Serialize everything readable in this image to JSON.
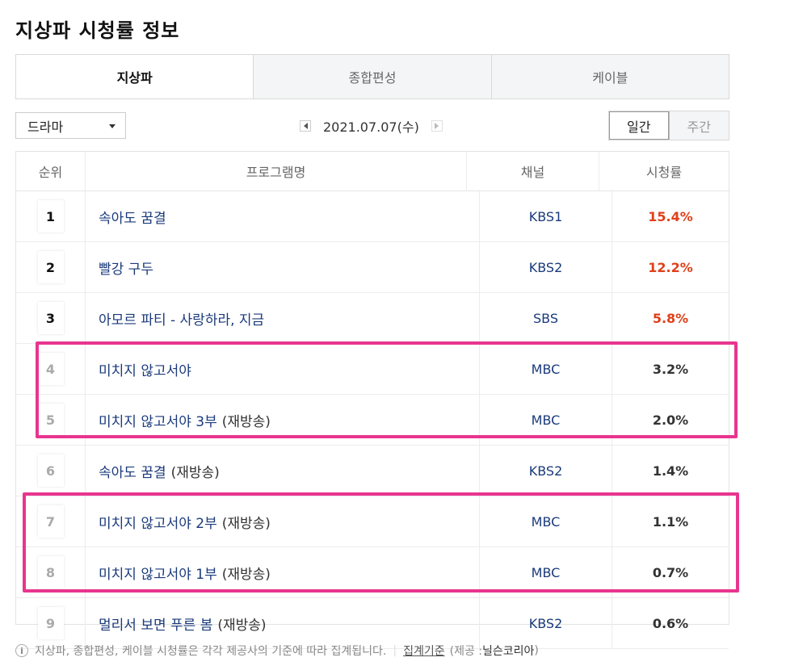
{
  "page_title": "지상파 시청률 정보",
  "tabs": [
    {
      "label": "지상파",
      "active": true
    },
    {
      "label": "종합편성",
      "active": false
    },
    {
      "label": "케이블",
      "active": false
    }
  ],
  "genre_select": {
    "value": "드라마"
  },
  "date_nav": {
    "date": "2021.07.07(수)"
  },
  "period": {
    "daily": "일간",
    "weekly": "주간",
    "selected": "일간"
  },
  "table": {
    "headers": {
      "rank": "순위",
      "program": "프로그램명",
      "channel": "채널",
      "rating": "시청률"
    },
    "rows": [
      {
        "rank": "1",
        "program": "속아도 꿈결",
        "tag": "",
        "channel": "KBS1",
        "rating": "15.4%"
      },
      {
        "rank": "2",
        "program": "빨강 구두",
        "tag": "",
        "channel": "KBS2",
        "rating": "12.2%"
      },
      {
        "rank": "3",
        "program": "아모르 파티 - 사랑하라, 지금",
        "tag": "",
        "channel": "SBS",
        "rating": "5.8%"
      },
      {
        "rank": "4",
        "program": "미치지 않고서야",
        "tag": "",
        "channel": "MBC",
        "rating": "3.2%"
      },
      {
        "rank": "5",
        "program": "미치지 않고서야 3부",
        "tag": "(재방송)",
        "channel": "MBC",
        "rating": "2.0%"
      },
      {
        "rank": "6",
        "program": "속아도 꿈결",
        "tag": "(재방송)",
        "channel": "KBS2",
        "rating": "1.4%"
      },
      {
        "rank": "7",
        "program": "미치지 않고서야 2부",
        "tag": "(재방송)",
        "channel": "MBC",
        "rating": "1.1%"
      },
      {
        "rank": "8",
        "program": "미치지 않고서야 1부",
        "tag": "(재방송)",
        "channel": "MBC",
        "rating": "0.7%"
      },
      {
        "rank": "9",
        "program": "멀리서 보면 푸른 봄",
        "tag": "(재방송)",
        "channel": "KBS2",
        "rating": "0.6%"
      }
    ]
  },
  "footer": {
    "note": "지상파, 종합편성, 케이블 시청률은 각각 제공사의 기준에 따라 집계됩니다.",
    "link": "집계기준",
    "provider_prefix": "(제공 : ",
    "provider": "닐슨코리아",
    "provider_suffix": ")"
  },
  "colors": {
    "accent_red": "#e0401a",
    "highlight": "#e8358f",
    "link_blue": "#1a3a7a"
  }
}
